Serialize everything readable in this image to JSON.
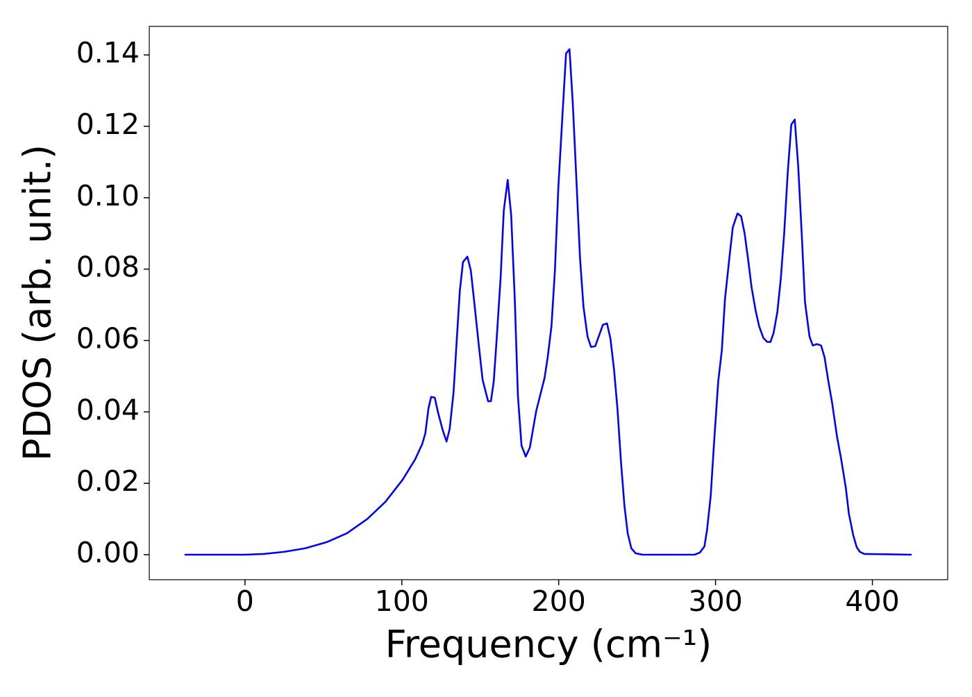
{
  "chart_data": {
    "type": "line",
    "x_label": "Frequency (cm⁻¹)",
    "y_label": "PDOS (arb. unit.)",
    "color": "#0000ff",
    "xlim": [
      -61,
      448
    ],
    "ylim": [
      -0.007,
      0.148
    ],
    "xticks": [
      0,
      100,
      200,
      300,
      400
    ],
    "yticks": [
      {
        "value": 0,
        "label": "0.00"
      },
      {
        "value": 0.02,
        "label": "0.02"
      },
      {
        "value": 0.04,
        "label": "0.04"
      },
      {
        "value": 0.06,
        "label": "0.06"
      },
      {
        "value": 0.08,
        "label": "0.08"
      },
      {
        "value": 0.1,
        "label": "0.10"
      },
      {
        "value": 0.12,
        "label": "0.12"
      },
      {
        "value": 0.14,
        "label": "0.14"
      }
    ],
    "x": [
      -38.5,
      0,
      12,
      25,
      38.5,
      52,
      65,
      78,
      89.5,
      100.5,
      108.5,
      113,
      115,
      117,
      118.7,
      121,
      123,
      126,
      128.5,
      130.5,
      133,
      135,
      137,
      139,
      141.8,
      144,
      146,
      149,
      151.5,
      155,
      156.8,
      158.6,
      160.4,
      163,
      165,
      167.5,
      169.7,
      172,
      174,
      176.3,
      179,
      181.6,
      185.7,
      191,
      193,
      195.4,
      197.6,
      199.8,
      202.5,
      204.7,
      206.9,
      209,
      211.3,
      213.6,
      215.8,
      218.4,
      220.6,
      223.3,
      225.5,
      228.2,
      230.8,
      233,
      235.3,
      237.5,
      239.7,
      241.9,
      244,
      246.3,
      249,
      253.4,
      286.7,
      290,
      292.9,
      294.6,
      296.9,
      299,
      301.7,
      304,
      306,
      309,
      311,
      314,
      316.3,
      318.5,
      320.8,
      323,
      325.6,
      327.8,
      330.5,
      333,
      335,
      337,
      339.4,
      341.6,
      343.8,
      346,
      348.3,
      350.5,
      352.7,
      355,
      357,
      359.9,
      362,
      364.6,
      367.3,
      369.5,
      371.8,
      374.4,
      377.5,
      380,
      383,
      385,
      387.7,
      390,
      392,
      394.8,
      425
    ],
    "values": [
      0,
      0,
      0.0002,
      0.0008,
      0.0018,
      0.0035,
      0.006,
      0.01,
      0.0148,
      0.021,
      0.0267,
      0.031,
      0.034,
      0.041,
      0.0442,
      0.044,
      0.04,
      0.035,
      0.0317,
      0.0352,
      0.0456,
      0.06,
      0.074,
      0.082,
      0.0835,
      0.0796,
      0.0715,
      0.059,
      0.049,
      0.043,
      0.043,
      0.0485,
      0.06,
      0.0777,
      0.0964,
      0.105,
      0.0952,
      0.0718,
      0.0446,
      0.0306,
      0.0275,
      0.03,
      0.0403,
      0.0495,
      0.0553,
      0.064,
      0.0796,
      0.103,
      0.1238,
      0.1404,
      0.1416,
      0.1264,
      0.105,
      0.0831,
      0.0695,
      0.0611,
      0.0582,
      0.0584,
      0.0611,
      0.0644,
      0.0648,
      0.0605,
      0.0518,
      0.0407,
      0.0261,
      0.0138,
      0.006,
      0.0018,
      0.0004,
      0,
      0,
      0.0006,
      0.0023,
      0.007,
      0.0164,
      0.031,
      0.0485,
      0.0572,
      0.0715,
      0.0839,
      0.0917,
      0.0956,
      0.0948,
      0.0901,
      0.0826,
      0.0748,
      0.0683,
      0.064,
      0.0607,
      0.0596,
      0.0596,
      0.0621,
      0.068,
      0.0773,
      0.0903,
      0.1069,
      0.1205,
      0.1219,
      0.1088,
      0.0894,
      0.0709,
      0.0611,
      0.0586,
      0.059,
      0.0586,
      0.0553,
      0.0489,
      0.0423,
      0.0329,
      0.027,
      0.0189,
      0.0115,
      0.0056,
      0.0021,
      0.0008,
      0.0002,
      0
    ]
  }
}
